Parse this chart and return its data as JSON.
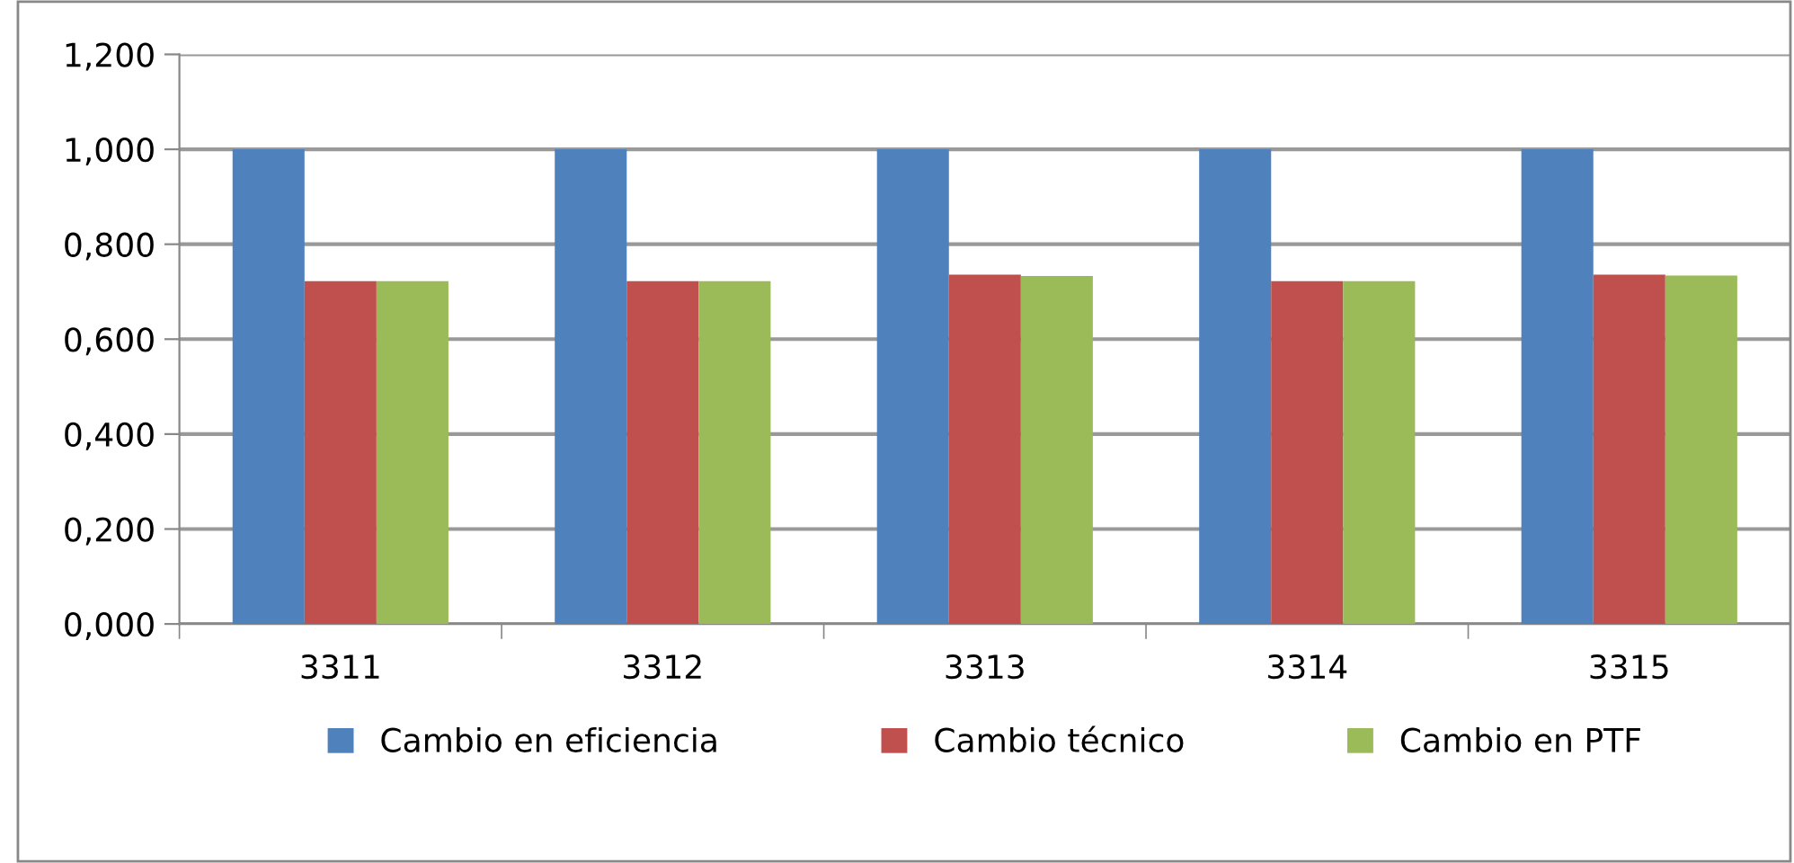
{
  "chart_data": {
    "type": "bar",
    "categories": [
      "3311",
      "3312",
      "3313",
      "3314",
      "3315"
    ],
    "series": [
      {
        "name": "Cambio en eficiencia",
        "color": "#4f81bd",
        "values": [
          1.0,
          1.0,
          1.0,
          1.0,
          1.0
        ]
      },
      {
        "name": "Cambio técnico",
        "color": "#c0504d",
        "values": [
          0.722,
          0.722,
          0.736,
          0.722,
          0.736
        ]
      },
      {
        "name": "Cambio en PTF",
        "color": "#9bbb59",
        "values": [
          0.722,
          0.722,
          0.733,
          0.722,
          0.734
        ]
      }
    ],
    "ylim": [
      0,
      1.2
    ],
    "yticks": [
      {
        "value": 0,
        "label": "0,000"
      },
      {
        "value": 0.2,
        "label": "0,200"
      },
      {
        "value": 0.4,
        "label": "0,400"
      },
      {
        "value": 0.6,
        "label": "0,600"
      },
      {
        "value": 0.8,
        "label": "0,800"
      },
      {
        "value": 1.0,
        "label": "1,000"
      },
      {
        "value": 1.2,
        "label": "1,200"
      }
    ],
    "grid": "y",
    "legend": "bottom"
  }
}
